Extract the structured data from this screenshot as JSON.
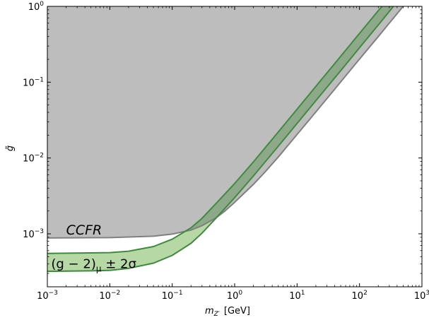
{
  "chart_data": {
    "type": "area",
    "xscale": "log",
    "yscale": "log",
    "xlim": [
      0.001,
      1000
    ],
    "ylim": [
      0.0002,
      1
    ],
    "grid": false,
    "xlabel_main": "m",
    "xlabel_sub": "Z′",
    "xlabel_unit": "[GeV]",
    "ylabel": "g̃",
    "x_ticks": [
      {
        "base": "10",
        "exp": "−3",
        "value": 0.001
      },
      {
        "base": "10",
        "exp": "−2",
        "value": 0.01
      },
      {
        "base": "10",
        "exp": "−1",
        "value": 0.1
      },
      {
        "base": "10",
        "exp": "0",
        "value": 1
      },
      {
        "base": "10",
        "exp": "1",
        "value": 10
      },
      {
        "base": "10",
        "exp": "2",
        "value": 100
      },
      {
        "base": "10",
        "exp": "3",
        "value": 1000
      }
    ],
    "y_ticks": [
      {
        "base": "10",
        "exp": "−3",
        "value": 0.001
      },
      {
        "base": "10",
        "exp": "−2",
        "value": 0.01
      },
      {
        "base": "10",
        "exp": "−1",
        "value": 0.1
      },
      {
        "base": "10",
        "exp": "0",
        "value": 1
      }
    ],
    "series": [
      {
        "key": "ccfr",
        "label": "CCFR",
        "fill": "#bdbdbd",
        "stroke": "#808080",
        "boundary": [
          [
            0.001,
            0.00088
          ],
          [
            0.01,
            0.00089
          ],
          [
            0.05,
            0.00093
          ],
          [
            0.1,
            0.00099
          ],
          [
            0.2,
            0.00112
          ],
          [
            0.3,
            0.00128
          ],
          [
            0.5,
            0.00162
          ],
          [
            0.7,
            0.002
          ],
          [
            1,
            0.0026
          ],
          [
            2,
            0.0045
          ],
          [
            3,
            0.0064
          ],
          [
            5,
            0.0103
          ],
          [
            10,
            0.0204
          ],
          [
            20,
            0.0405
          ],
          [
            50,
            0.101
          ],
          [
            100,
            0.202
          ],
          [
            200,
            0.4
          ],
          [
            300,
            0.6
          ],
          [
            500,
            1.0
          ]
        ]
      },
      {
        "key": "g2",
        "label": "(g − 2)",
        "label_sub": "μ",
        "label_suffix": " ± 2σ",
        "fill": "#b5d8a5",
        "stroke": "#3f8a3f",
        "upper": [
          [
            0.001,
            0.00055
          ],
          [
            0.005,
            0.00056
          ],
          [
            0.01,
            0.000565
          ],
          [
            0.02,
            0.00059
          ],
          [
            0.05,
            0.00068
          ],
          [
            0.1,
            0.00085
          ],
          [
            0.2,
            0.0012
          ],
          [
            0.3,
            0.0016
          ],
          [
            0.5,
            0.0025
          ],
          [
            1,
            0.0046
          ],
          [
            2,
            0.0089
          ],
          [
            5,
            0.022
          ],
          [
            10,
            0.044
          ],
          [
            20,
            0.088
          ],
          [
            50,
            0.22
          ],
          [
            100,
            0.44
          ],
          [
            200,
            0.88
          ],
          [
            230,
            1.0
          ]
        ],
        "lower": [
          [
            0.001,
            0.00032
          ],
          [
            0.005,
            0.000325
          ],
          [
            0.01,
            0.00033
          ],
          [
            0.02,
            0.00035
          ],
          [
            0.05,
            0.00041
          ],
          [
            0.1,
            0.00052
          ],
          [
            0.2,
            0.00075
          ],
          [
            0.3,
            0.00102
          ],
          [
            0.5,
            0.0016
          ],
          [
            1,
            0.003
          ],
          [
            2,
            0.0058
          ],
          [
            5,
            0.0143
          ],
          [
            10,
            0.0285
          ],
          [
            20,
            0.057
          ],
          [
            50,
            0.142
          ],
          [
            100,
            0.285
          ],
          [
            200,
            0.57
          ],
          [
            350,
            1.0
          ]
        ]
      }
    ],
    "annotations": [
      {
        "key": "ccfr",
        "text": "CCFR",
        "x": 0.002,
        "y": 0.00098
      },
      {
        "key": "g2",
        "x": 0.00115,
        "y": 0.000355
      }
    ],
    "colors": {
      "axis": "#000000",
      "ccfr_fill": "#bdbdbd",
      "ccfr_edge": "#808080",
      "g2_fill": "#b5d8a5",
      "g2_edge": "#3f8a3f",
      "overlap_fill": "#8ea98a"
    }
  }
}
